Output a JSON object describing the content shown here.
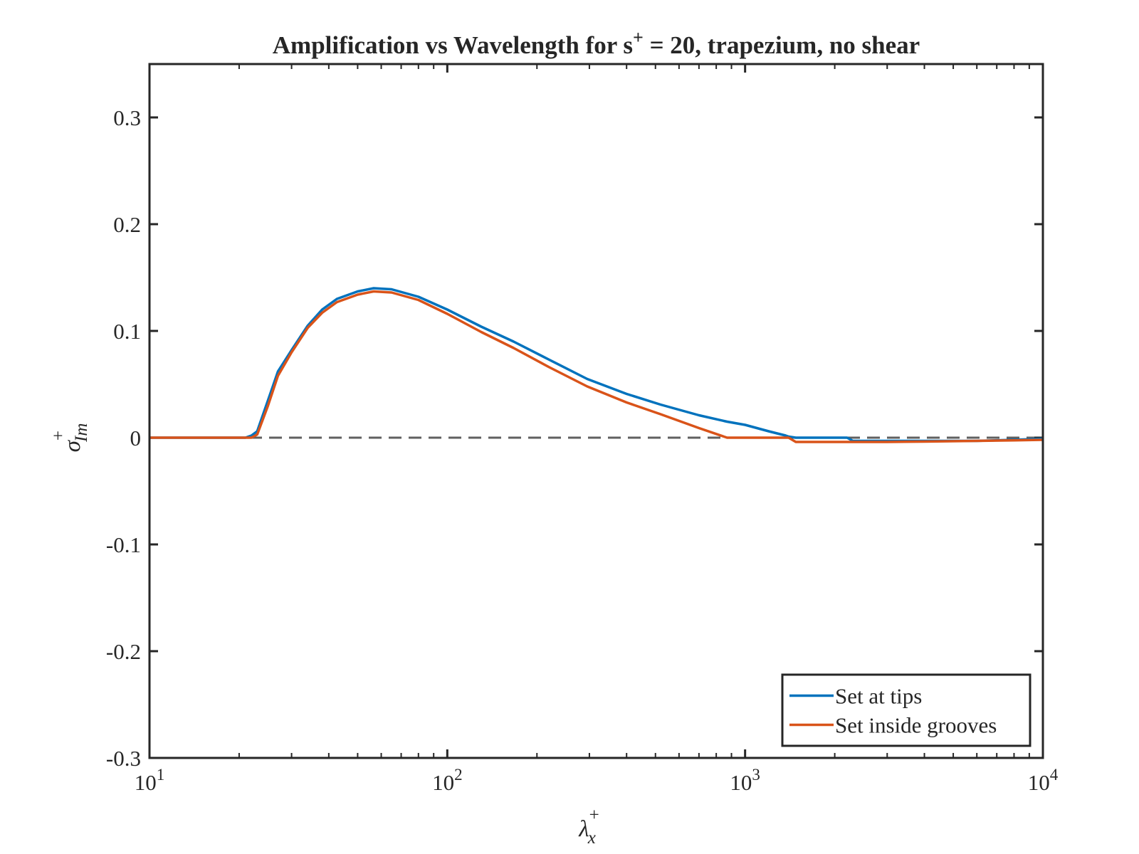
{
  "chart_data": {
    "type": "line",
    "title": {
      "text": "Amplification vs Wavelength for s",
      "sup": "+",
      "rest": " = 20, trapezium, no shear"
    },
    "x_label": {
      "text": "λ",
      "sup": "+",
      "sub": "x"
    },
    "y_label": {
      "text": "σ",
      "sup": "+",
      "sub": "Im"
    },
    "x_scale": "log",
    "xlim": [
      10,
      10000
    ],
    "xticks": [
      {
        "value": 10,
        "label": "10",
        "exponent": "1"
      },
      {
        "value": 100,
        "label": "10",
        "exponent": "2"
      },
      {
        "value": 1000,
        "label": "10",
        "exponent": "3"
      },
      {
        "value": 10000,
        "label": "10",
        "exponent": "4"
      }
    ],
    "ylim": [
      -0.3,
      0.35
    ],
    "yticks": [
      -0.3,
      -0.2,
      -0.1,
      0,
      0.1,
      0.2,
      0.3
    ],
    "grid": false,
    "reference_line": {
      "value": 0,
      "color": "#606060",
      "style": "dashed"
    },
    "legend": "southeast",
    "x": [
      10,
      15,
      21,
      22,
      23,
      25,
      27,
      30,
      34,
      38,
      42.6,
      50,
      56.6,
      65,
      80,
      100,
      130,
      167,
      220,
      295,
      400,
      520,
      700,
      870,
      1000,
      1200,
      1368,
      1400,
      1480,
      1600,
      2000,
      2200,
      2300,
      3000,
      4000,
      6000,
      8000,
      10000
    ],
    "series": [
      {
        "name": "Set at tips",
        "color": "#0072BD",
        "values": [
          0,
          0,
          0,
          0.002,
          0.006,
          0.035,
          0.062,
          0.082,
          0.105,
          0.12,
          0.13,
          0.137,
          0.14,
          0.139,
          0.132,
          0.12,
          0.104,
          0.09,
          0.073,
          0.055,
          0.041,
          0.031,
          0.021,
          0.015,
          0.012,
          0.006,
          0.002,
          0.001,
          0,
          0,
          0,
          0,
          -0.003,
          -0.003,
          -0.003,
          -0.003,
          -0.002,
          -0.001
        ]
      },
      {
        "name": "Set inside grooves",
        "color": "#D95319",
        "values": [
          0,
          0,
          0,
          0,
          0.003,
          0.03,
          0.058,
          0.08,
          0.103,
          0.117,
          0.127,
          0.134,
          0.137,
          0.136,
          0.129,
          0.116,
          0.099,
          0.084,
          0.066,
          0.048,
          0.033,
          0.022,
          0.009,
          0,
          0,
          0,
          0,
          0,
          -0.004,
          -0.004,
          -0.004,
          -0.004,
          -0.004,
          -0.004,
          -0.0037,
          -0.003,
          -0.0025,
          -0.002
        ]
      }
    ]
  }
}
